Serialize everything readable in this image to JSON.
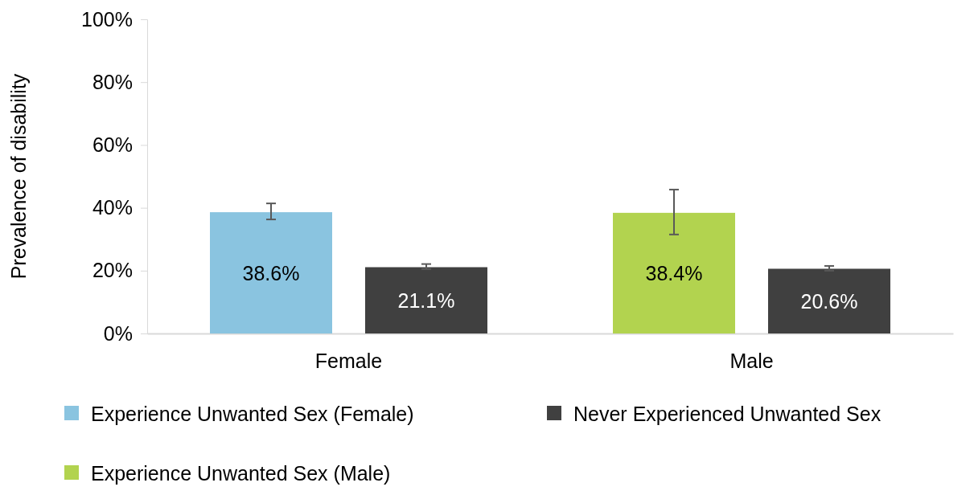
{
  "chart_data": {
    "type": "bar",
    "ylabel": "Prevalence of disability",
    "categories": [
      "Female",
      "Male"
    ],
    "series": [
      {
        "name": "Experience Unwanted Sex (Female)",
        "color": "#8ac4e0",
        "values": [
          38.6,
          null
        ],
        "errors": [
          [
            36.3,
            41.4
          ],
          null
        ],
        "value_labels": [
          "38.6%",
          null
        ]
      },
      {
        "name": "Experience Unwanted Sex (Male)",
        "color": "#b2d34f",
        "values": [
          null,
          38.4
        ],
        "errors": [
          null,
          [
            31.5,
            45.8
          ]
        ],
        "value_labels": [
          null,
          "38.4%"
        ]
      },
      {
        "name": "Never Experienced Unwanted Sex",
        "color": "#404040",
        "values": [
          21.1,
          20.6
        ],
        "errors": [
          [
            20.5,
            22.1
          ],
          [
            20.0,
            21.5
          ]
        ],
        "value_labels": [
          "21.1%",
          "20.6%"
        ]
      }
    ],
    "ylim": [
      0,
      100
    ],
    "yticks": [
      {
        "value": 0,
        "label": "0%"
      },
      {
        "value": 20,
        "label": "20%"
      },
      {
        "value": 40,
        "label": "40%"
      },
      {
        "value": 60,
        "label": "60%"
      },
      {
        "value": 80,
        "label": "80%"
      },
      {
        "value": 100,
        "label": "100%"
      }
    ],
    "legend": "bottom",
    "grid": false
  }
}
